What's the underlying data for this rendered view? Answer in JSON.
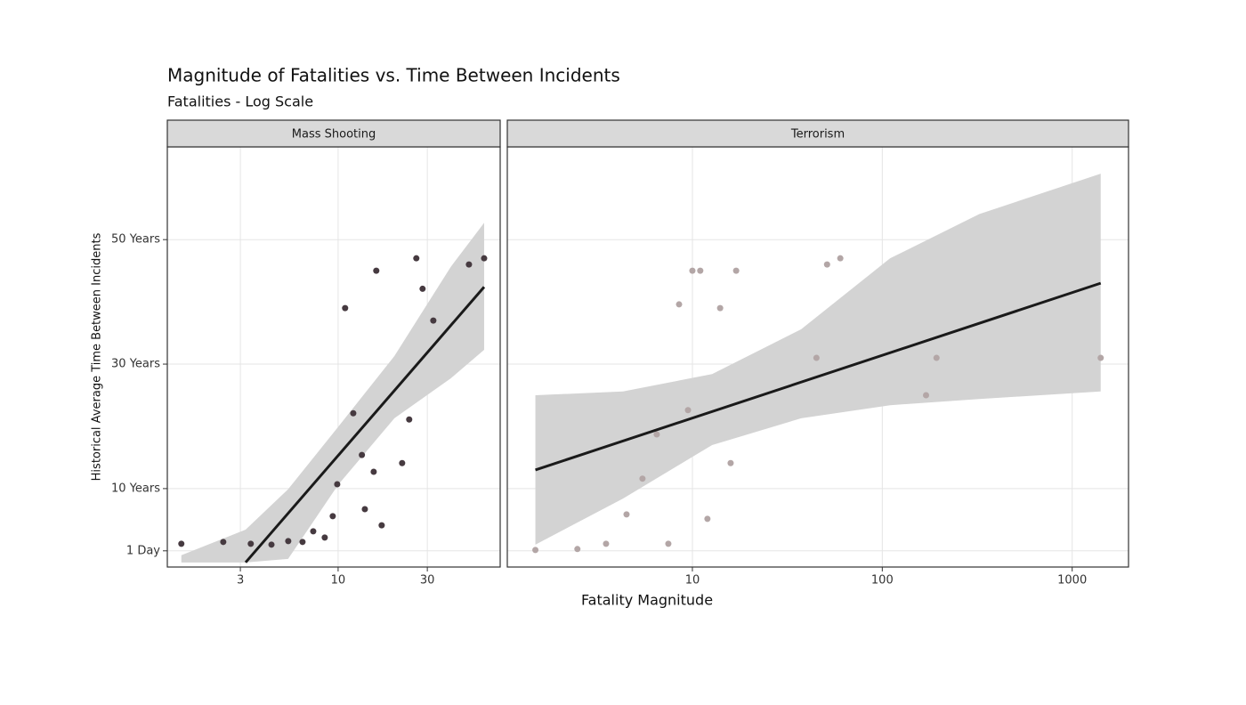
{
  "chart_data": {
    "type": "scatter",
    "title": "Magnitude of Fatalities vs. Time Between Incidents",
    "subtitle": "Fatalities - Log Scale",
    "x_label": "Fatality Magnitude",
    "y_label": "Historical Average Time Between Incidents",
    "ylim": [
      -2.6,
      64.9
    ],
    "yticks": [
      {
        "value": 0.00274,
        "label": "1 Day"
      },
      {
        "value": 10,
        "label": "10 Years"
      },
      {
        "value": 30,
        "label": "30 Years"
      },
      {
        "value": 50,
        "label": "50 Years"
      }
    ],
    "grid": true,
    "xscale": "log",
    "facets": [
      {
        "name": "Mass Shooting",
        "color": "#463a40",
        "xlim": [
          1.22,
          73.6
        ],
        "xticks": [
          3,
          10,
          30
        ],
        "x": [
          1.45,
          2.43,
          3.41,
          4.4,
          5.41,
          6.45,
          7.36,
          8.48,
          9.36,
          9.89,
          10.9,
          12.05,
          13.4,
          13.9,
          15.5,
          16.0,
          17.1,
          22.0,
          24.0,
          26.2,
          28.3,
          32.3,
          50.1,
          60.4
        ],
        "values": [
          1.14,
          1.43,
          1.14,
          1.0,
          1.57,
          1.43,
          3.14,
          2.14,
          5.57,
          10.7,
          39,
          22.1,
          15.4,
          6.7,
          12.7,
          45,
          4.1,
          14.1,
          21.1,
          47,
          42.1,
          37,
          46,
          47
        ],
        "fit": {
          "x": [
            3.2,
            60.4
          ],
          "y": [
            -1.86,
            42.4
          ],
          "color": "#1a1a1a"
        },
        "band": {
          "x": [
            1.45,
            3.2,
            5.4,
            10,
            20,
            40,
            60.4
          ],
          "upper": [
            -0.71,
            3.4,
            9.9,
            19.9,
            31.3,
            45.6,
            52.7
          ],
          "lower": [
            -1.86,
            -1.86,
            -1.3,
            10.6,
            21.3,
            27.7,
            32.3
          ],
          "color": "#d3d3d3"
        }
      },
      {
        "name": "Terrorism",
        "color": "#b3a6a6",
        "xlim": [
          1.06,
          1980
        ],
        "xticks": [
          10,
          100,
          1000
        ],
        "x": [
          1.49,
          2.48,
          3.51,
          4.5,
          5.46,
          6.49,
          7.47,
          8.51,
          9.48,
          10,
          11.0,
          12.0,
          14.0,
          15.9,
          17.0,
          45.0,
          51.2,
          60.1,
          170,
          193,
          1413
        ],
        "values": [
          0.14,
          0.29,
          1.14,
          5.86,
          11.6,
          18.7,
          1.14,
          39.6,
          22.6,
          45,
          45,
          5.14,
          39,
          14.1,
          45,
          31,
          46,
          47,
          25,
          31,
          31
        ],
        "fit": {
          "x": [
            1.49,
            1413
          ],
          "y": [
            13.0,
            43.0
          ],
          "color": "#1a1a1a"
        },
        "band": {
          "x": [
            1.49,
            4.31,
            12.7,
            37.4,
            110,
            324,
            1413
          ],
          "upper": [
            25,
            25.6,
            28.4,
            35.6,
            47.0,
            54.1,
            60.6
          ],
          "lower": [
            1.0,
            8.4,
            17.0,
            21.3,
            23.4,
            24.4,
            25.6
          ],
          "color": "#d3d3d3"
        }
      }
    ]
  }
}
